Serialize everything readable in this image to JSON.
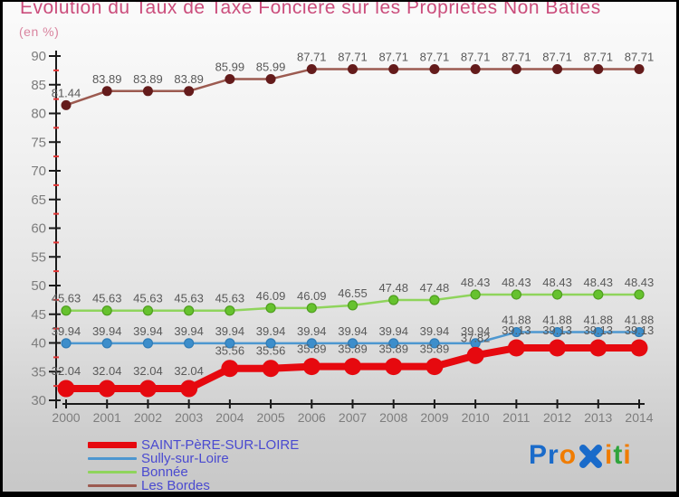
{
  "title": "Evolution du Taux de Taxe Foncière sur les Propriétés Non Bâties",
  "subtitle": "(en %)",
  "colors": {
    "title": "#cb4d7c",
    "subtitle": "#d9849f",
    "axis": "#1a1a1a",
    "minor_tick": "#e23434",
    "tick_label": "#7d7d7d",
    "value_label": "#595959",
    "legend_text": "#4a4ad0"
  },
  "chart_data": {
    "type": "line",
    "title": "Evolution du Taux de Taxe Foncière sur les Propriétés Non Bâties",
    "ylabel": "en %",
    "xlabel": "",
    "x": [
      2000,
      2001,
      2002,
      2003,
      2004,
      2005,
      2006,
      2007,
      2008,
      2009,
      2010,
      2011,
      2012,
      2013,
      2014
    ],
    "ylim": [
      30,
      90
    ],
    "ytick_step": 5,
    "grid": false,
    "legend_position": "bottom-left",
    "value_labels": true,
    "series": [
      {
        "name": "SAINT-PèRE-SUR-LOIRE",
        "color": "#e6090f",
        "marker_color": "#e6090f",
        "marker_stroke": "none",
        "line_width": 8,
        "marker_radius": 9.5,
        "values": [
          32.04,
          32.04,
          32.04,
          32.04,
          35.56,
          35.56,
          35.89,
          35.89,
          35.89,
          35.89,
          37.82,
          39.13,
          39.13,
          39.13,
          39.13
        ]
      },
      {
        "name": "Sully-sur-Loire",
        "color": "#4d97d0",
        "marker_color": "#3d8ecb",
        "marker_stroke": "#2f7cb6",
        "line_width": 2.5,
        "marker_radius": 5,
        "values": [
          39.94,
          39.94,
          39.94,
          39.94,
          39.94,
          39.94,
          39.94,
          39.94,
          39.94,
          39.94,
          39.94,
          41.88,
          41.88,
          41.88,
          41.88
        ]
      },
      {
        "name": "Bonnée",
        "color": "#8fd45c",
        "marker_color": "#66c22e",
        "marker_stroke": "#4f9e1f",
        "line_width": 2.5,
        "marker_radius": 5,
        "values": [
          45.63,
          45.63,
          45.63,
          45.63,
          45.63,
          46.09,
          46.09,
          46.55,
          47.48,
          47.48,
          48.43,
          48.43,
          48.43,
          48.43,
          48.43
        ]
      },
      {
        "name": "Les Bordes",
        "color": "#9c5a50",
        "marker_color": "#641b1b",
        "marker_stroke": "none",
        "line_width": 2.5,
        "marker_radius": 5.5,
        "values": [
          81.44,
          83.89,
          83.89,
          83.89,
          85.99,
          85.99,
          87.71,
          87.71,
          87.71,
          87.71,
          87.71,
          87.71,
          87.71,
          87.71,
          87.71
        ]
      }
    ]
  },
  "logo": {
    "letters": [
      {
        "ch": "P",
        "color": "#1a6bca"
      },
      {
        "ch": "r",
        "color": "#1a6bca"
      },
      {
        "ch": "o",
        "color": "#f07c00"
      },
      {
        "ch": "x",
        "color": "#1a6bca"
      },
      {
        "ch": "i",
        "color": "#f07c00"
      },
      {
        "ch": "t",
        "color": "#2fa43c"
      },
      {
        "ch": "i",
        "color": "#f07c00"
      }
    ]
  }
}
